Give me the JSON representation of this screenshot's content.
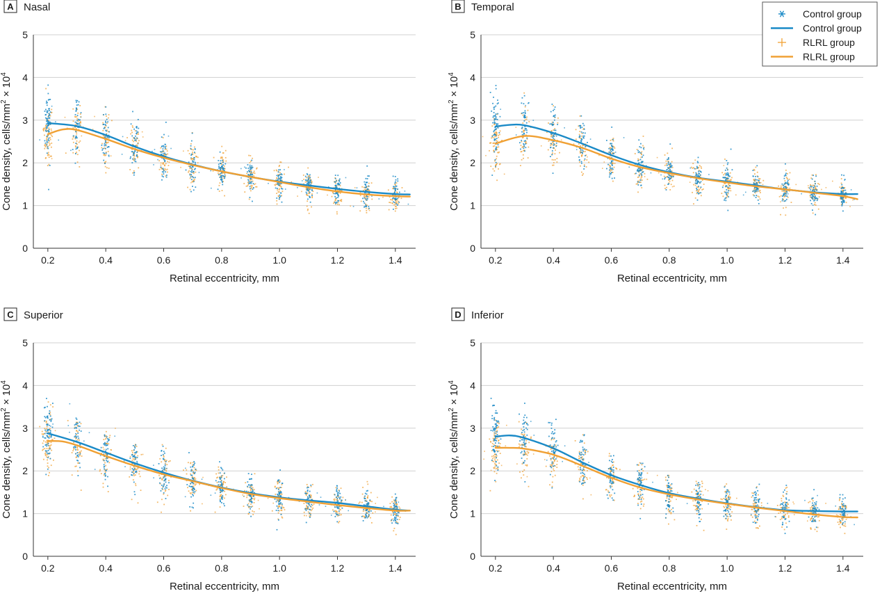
{
  "figure": {
    "panels": [
      {
        "letter": "A",
        "title": "Nasal"
      },
      {
        "letter": "B",
        "title": "Temporal"
      },
      {
        "letter": "C",
        "title": "Superior"
      },
      {
        "letter": "D",
        "title": "Inferior"
      }
    ],
    "legend": [
      {
        "label": "Control group",
        "kind": "marker",
        "symbol": "*",
        "color": "#1a8ac7"
      },
      {
        "label": "Control group",
        "kind": "line",
        "color": "#1a8ac7"
      },
      {
        "label": "RLRL group",
        "kind": "marker",
        "symbol": "+",
        "color": "#f0a033"
      },
      {
        "label": "RLRL group",
        "kind": "line",
        "color": "#f0a033"
      }
    ],
    "colors": {
      "control": "#1a8ac7",
      "rlrl": "#f0a033",
      "grid": "#d0d0d0",
      "axis": "#333333"
    }
  },
  "chart_data": [
    {
      "type": "scatter",
      "panel": "A",
      "title": "Nasal",
      "xlabel": "Retinal eccentricity, mm",
      "ylabel_base": "Cone density, cells/mm",
      "ylabel_sup1": "2",
      "ylabel_mid": " × 10",
      "ylabel_sup2": "4",
      "xlim": [
        0.15,
        1.47
      ],
      "ylim": [
        0,
        5
      ],
      "xticks": [
        "0.2",
        "0.4",
        "0.6",
        "0.8",
        "1.0",
        "1.2",
        "1.4"
      ],
      "yticks": [
        "0",
        "1",
        "2",
        "3",
        "4",
        "5"
      ],
      "grid": true,
      "series": [
        {
          "name": "Control group",
          "x": [
            0.2,
            0.3,
            0.4,
            0.5,
            0.6,
            0.7,
            0.8,
            0.9,
            1.0,
            1.1,
            1.2,
            1.3,
            1.4,
            1.45
          ],
          "y": [
            2.93,
            2.86,
            2.65,
            2.38,
            2.15,
            1.96,
            1.8,
            1.67,
            1.56,
            1.47,
            1.39,
            1.32,
            1.27,
            1.26
          ]
        },
        {
          "name": "RLRL group",
          "x": [
            0.2,
            0.25,
            0.3,
            0.4,
            0.5,
            0.6,
            0.7,
            0.8,
            0.9,
            1.0,
            1.1,
            1.2,
            1.3,
            1.4,
            1.45
          ],
          "y": [
            2.67,
            2.78,
            2.77,
            2.56,
            2.32,
            2.12,
            1.95,
            1.8,
            1.67,
            1.55,
            1.43,
            1.33,
            1.26,
            1.22,
            1.21
          ]
        }
      ],
      "scatter_stats": {
        "x": [
          0.2,
          0.3,
          0.4,
          0.5,
          0.6,
          0.7,
          0.8,
          0.9,
          1.0,
          1.1,
          1.2,
          1.3,
          1.4
        ],
        "control_mean": [
          2.93,
          2.86,
          2.65,
          2.38,
          2.15,
          1.96,
          1.8,
          1.67,
          1.56,
          1.47,
          1.39,
          1.32,
          1.27
        ],
        "rlrl_mean": [
          2.67,
          2.77,
          2.56,
          2.32,
          2.12,
          1.95,
          1.8,
          1.67,
          1.55,
          1.43,
          1.33,
          1.26,
          1.22
        ],
        "spread": [
          0.55,
          0.5,
          0.45,
          0.42,
          0.38,
          0.36,
          0.34,
          0.32,
          0.3,
          0.28,
          0.28,
          0.27,
          0.26
        ]
      }
    },
    {
      "type": "scatter",
      "panel": "B",
      "title": "Temporal",
      "xlabel": "Retinal eccentricity, mm",
      "ylabel_base": "Cone density, cells/mm",
      "ylabel_sup1": "2",
      "ylabel_mid": " × 10",
      "ylabel_sup2": "4",
      "xlim": [
        0.15,
        1.47
      ],
      "ylim": [
        0,
        5
      ],
      "xticks": [
        "0.2",
        "0.4",
        "0.6",
        "0.8",
        "1.0",
        "1.2",
        "1.4"
      ],
      "yticks": [
        "0",
        "1",
        "2",
        "3",
        "4",
        "5"
      ],
      "grid": true,
      "series": [
        {
          "name": "Control group",
          "x": [
            0.2,
            0.25,
            0.3,
            0.4,
            0.5,
            0.6,
            0.7,
            0.8,
            0.9,
            1.0,
            1.1,
            1.2,
            1.3,
            1.4,
            1.45
          ],
          "y": [
            2.85,
            2.89,
            2.88,
            2.7,
            2.45,
            2.18,
            1.95,
            1.78,
            1.65,
            1.56,
            1.47,
            1.38,
            1.31,
            1.27,
            1.27
          ]
        },
        {
          "name": "RLRL group",
          "x": [
            0.2,
            0.3,
            0.4,
            0.5,
            0.6,
            0.7,
            0.8,
            0.9,
            1.0,
            1.1,
            1.2,
            1.3,
            1.4,
            1.45
          ],
          "y": [
            2.45,
            2.63,
            2.53,
            2.35,
            2.1,
            1.9,
            1.76,
            1.64,
            1.54,
            1.45,
            1.38,
            1.3,
            1.22,
            1.15
          ]
        }
      ],
      "scatter_stats": {
        "x": [
          0.2,
          0.3,
          0.4,
          0.5,
          0.6,
          0.7,
          0.8,
          0.9,
          1.0,
          1.1,
          1.2,
          1.3,
          1.4
        ],
        "control_mean": [
          2.85,
          2.88,
          2.7,
          2.45,
          2.18,
          1.95,
          1.78,
          1.65,
          1.56,
          1.47,
          1.38,
          1.31,
          1.27
        ],
        "rlrl_mean": [
          2.45,
          2.63,
          2.53,
          2.35,
          2.1,
          1.9,
          1.76,
          1.64,
          1.54,
          1.45,
          1.38,
          1.3,
          1.22
        ],
        "spread": [
          0.55,
          0.5,
          0.45,
          0.42,
          0.38,
          0.36,
          0.34,
          0.32,
          0.3,
          0.28,
          0.28,
          0.27,
          0.26
        ]
      }
    },
    {
      "type": "scatter",
      "panel": "C",
      "title": "Superior",
      "xlabel": "Retinal eccentricity, mm",
      "ylabel_base": "Cone density, cells/mm",
      "ylabel_sup1": "2",
      "ylabel_mid": " × 10",
      "ylabel_sup2": "4",
      "xlim": [
        0.15,
        1.47
      ],
      "ylim": [
        0,
        5
      ],
      "xticks": [
        "0.2",
        "0.4",
        "0.6",
        "0.8",
        "1.0",
        "1.2",
        "1.4"
      ],
      "yticks": [
        "0",
        "1",
        "2",
        "3",
        "4",
        "5"
      ],
      "grid": true,
      "series": [
        {
          "name": "Control group",
          "x": [
            0.2,
            0.3,
            0.4,
            0.5,
            0.6,
            0.7,
            0.8,
            0.9,
            1.0,
            1.1,
            1.2,
            1.3,
            1.4,
            1.45
          ],
          "y": [
            2.88,
            2.68,
            2.43,
            2.18,
            1.96,
            1.77,
            1.61,
            1.48,
            1.38,
            1.31,
            1.25,
            1.17,
            1.09,
            1.07
          ]
        },
        {
          "name": "RLRL group",
          "x": [
            0.2,
            0.25,
            0.3,
            0.4,
            0.5,
            0.6,
            0.7,
            0.8,
            0.9,
            1.0,
            1.1,
            1.2,
            1.3,
            1.4,
            1.45
          ],
          "y": [
            2.7,
            2.69,
            2.6,
            2.35,
            2.12,
            1.92,
            1.76,
            1.6,
            1.46,
            1.36,
            1.28,
            1.2,
            1.13,
            1.07,
            1.07
          ]
        }
      ],
      "scatter_stats": {
        "x": [
          0.2,
          0.3,
          0.4,
          0.5,
          0.6,
          0.7,
          0.8,
          0.9,
          1.0,
          1.1,
          1.2,
          1.3,
          1.4
        ],
        "control_mean": [
          2.88,
          2.68,
          2.43,
          2.18,
          1.96,
          1.77,
          1.61,
          1.48,
          1.38,
          1.31,
          1.25,
          1.17,
          1.09
        ],
        "rlrl_mean": [
          2.7,
          2.6,
          2.35,
          2.12,
          1.92,
          1.76,
          1.6,
          1.46,
          1.36,
          1.28,
          1.2,
          1.13,
          1.07
        ],
        "spread": [
          0.55,
          0.5,
          0.45,
          0.42,
          0.38,
          0.36,
          0.34,
          0.32,
          0.3,
          0.28,
          0.28,
          0.27,
          0.26
        ]
      }
    },
    {
      "type": "scatter",
      "panel": "D",
      "title": "Inferior",
      "xlabel": "Retinal eccentricity, mm",
      "ylabel_base": "Cone density, cells/mm",
      "ylabel_sup1": "2",
      "ylabel_mid": " × 10",
      "ylabel_sup2": "4",
      "xlim": [
        0.15,
        1.47
      ],
      "ylim": [
        0,
        5
      ],
      "xticks": [
        "0.2",
        "0.4",
        "0.6",
        "0.8",
        "1.0",
        "1.2",
        "1.4"
      ],
      "yticks": [
        "0",
        "1",
        "2",
        "3",
        "4",
        "5"
      ],
      "grid": true,
      "series": [
        {
          "name": "Control group",
          "x": [
            0.2,
            0.25,
            0.3,
            0.4,
            0.5,
            0.6,
            0.7,
            0.8,
            0.9,
            1.0,
            1.1,
            1.2,
            1.3,
            1.4,
            1.45
          ],
          "y": [
            2.8,
            2.83,
            2.77,
            2.53,
            2.2,
            1.9,
            1.67,
            1.48,
            1.35,
            1.24,
            1.15,
            1.08,
            1.06,
            1.05,
            1.05
          ]
        },
        {
          "name": "RLRL group",
          "x": [
            0.2,
            0.25,
            0.3,
            0.4,
            0.5,
            0.6,
            0.7,
            0.8,
            0.9,
            1.0,
            1.1,
            1.2,
            1.3,
            1.4,
            1.45
          ],
          "y": [
            2.54,
            2.54,
            2.52,
            2.38,
            2.12,
            1.84,
            1.61,
            1.45,
            1.33,
            1.23,
            1.14,
            1.06,
            0.98,
            0.92,
            0.91
          ]
        }
      ],
      "scatter_stats": {
        "x": [
          0.2,
          0.3,
          0.4,
          0.5,
          0.6,
          0.7,
          0.8,
          0.9,
          1.0,
          1.1,
          1.2,
          1.3,
          1.4
        ],
        "control_mean": [
          2.8,
          2.77,
          2.53,
          2.2,
          1.9,
          1.67,
          1.48,
          1.35,
          1.24,
          1.15,
          1.08,
          1.06,
          1.05
        ],
        "rlrl_mean": [
          2.54,
          2.52,
          2.38,
          2.12,
          1.84,
          1.61,
          1.45,
          1.33,
          1.23,
          1.14,
          1.06,
          0.98,
          0.92
        ],
        "spread": [
          0.55,
          0.5,
          0.45,
          0.42,
          0.38,
          0.36,
          0.34,
          0.32,
          0.3,
          0.28,
          0.28,
          0.27,
          0.26
        ]
      }
    }
  ]
}
